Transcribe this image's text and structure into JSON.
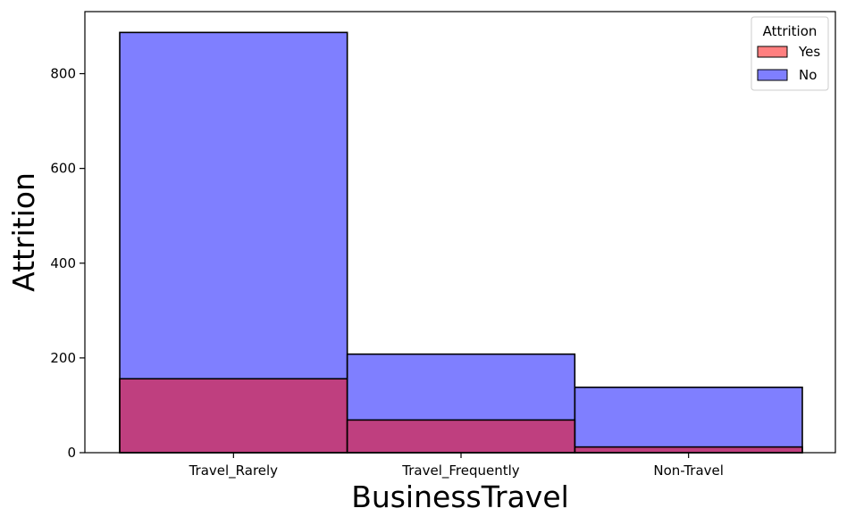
{
  "chart_data": {
    "type": "bar",
    "categories": [
      "Travel_Rarely",
      "Travel_Frequently",
      "Non-Travel"
    ],
    "series": [
      {
        "name": "No",
        "values": [
          887,
          208,
          138
        ],
        "color": "#0000ff",
        "alpha": 0.5
      },
      {
        "name": "Yes",
        "values": [
          156,
          69,
          12
        ],
        "color": "#ff0000",
        "alpha": 0.5
      }
    ],
    "xlabel": "BusinessTravel",
    "ylabel": "Attrition",
    "yticks": [
      0,
      200,
      400,
      600,
      800
    ],
    "ylim": [
      0,
      931
    ],
    "legend": {
      "title": "Attrition",
      "entries": [
        "Yes",
        "No"
      ],
      "placement": "top-right"
    },
    "grid": false,
    "overlay": true
  }
}
